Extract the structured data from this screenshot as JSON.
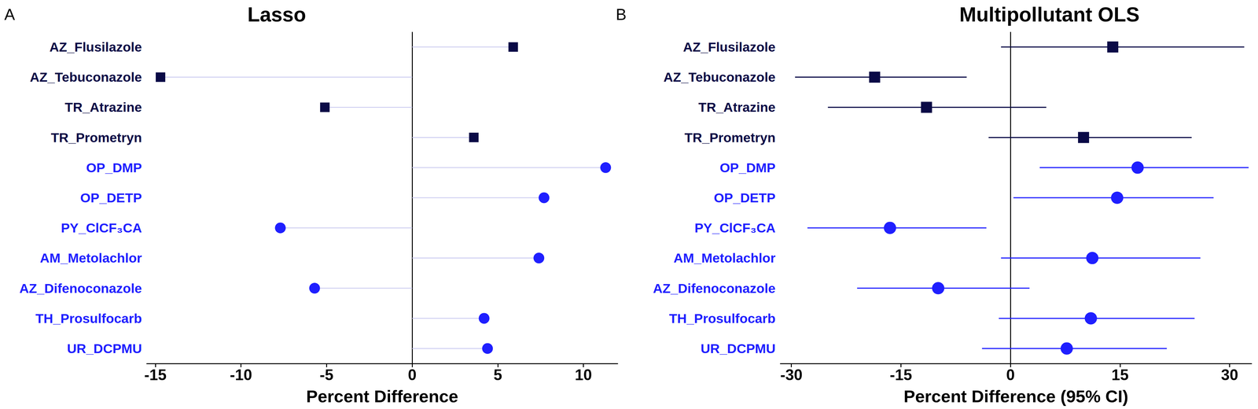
{
  "chart_data": [
    {
      "type": "lollipop",
      "title": "Lasso",
      "annotation": "A",
      "x_label": "Percent Difference",
      "categories": [
        "AZ_Flusilazole",
        "AZ_Tebuconazole",
        "TR_Atrazine",
        "TR_Prometryn",
        "OP_DMP",
        "OP_DETP",
        "PY_ClCF₃CA",
        "AM_Metolachlor",
        "AZ_Difenoconazole",
        "TH_Prosulfocarb",
        "UR_DCPMU"
      ],
      "xlim": [
        -15.5,
        12
      ],
      "xticks": [
        -15,
        -10,
        -5,
        0,
        5,
        10
      ],
      "series": [
        {
          "color": "#0a0a46",
          "marker": "square",
          "values": [
            5.9,
            -14.7,
            -5.1,
            3.6,
            null,
            null,
            null,
            null,
            null,
            null,
            null
          ]
        },
        {
          "color": "#1f1fff",
          "marker": "circle",
          "values": [
            null,
            null,
            null,
            null,
            11.3,
            7.7,
            -7.7,
            7.4,
            -5.7,
            4.2,
            4.4
          ]
        }
      ]
    },
    {
      "type": "forest",
      "title": "Multipollutant OLS",
      "annotation": "B",
      "x_label": "Percent Difference (95% CI)",
      "categories": [
        "AZ_Flusilazole",
        "AZ_Tebuconazole",
        "TR_Atrazine",
        "TR_Prometryn",
        "OP_DMP",
        "OP_DETP",
        "PY_ClCF₃CA",
        "AM_Metolachlor",
        "AZ_Difenoconazole",
        "TH_Prosulfocarb",
        "UR_DCPMU"
      ],
      "xlim": [
        -31.5,
        33
      ],
      "xticks": [
        -30,
        -15,
        0,
        15,
        30
      ],
      "series": [
        {
          "color": "#0a0a46",
          "marker": "square",
          "values": [
            14.0,
            -18.6,
            -11.5,
            10.0,
            null,
            null,
            null,
            null,
            null,
            null,
            null
          ],
          "ci_low": [
            -1.3,
            -29.5,
            -25.0,
            -3.0,
            null,
            null,
            null,
            null,
            null,
            null,
            null
          ],
          "ci_high": [
            32.0,
            -6.0,
            4.9,
            24.8,
            null,
            null,
            null,
            null,
            null,
            null,
            null
          ]
        },
        {
          "color": "#1f1fff",
          "marker": "circle",
          "values": [
            null,
            null,
            null,
            null,
            17.4,
            14.6,
            -16.5,
            11.2,
            -9.9,
            11.0,
            7.7
          ],
          "ci_low": [
            null,
            null,
            null,
            null,
            4.0,
            0.4,
            -27.8,
            -1.3,
            -21.0,
            -1.6,
            -3.9
          ],
          "ci_high": [
            null,
            null,
            null,
            null,
            32.6,
            27.8,
            -3.3,
            26.0,
            2.6,
            25.2,
            21.4
          ]
        }
      ]
    }
  ]
}
